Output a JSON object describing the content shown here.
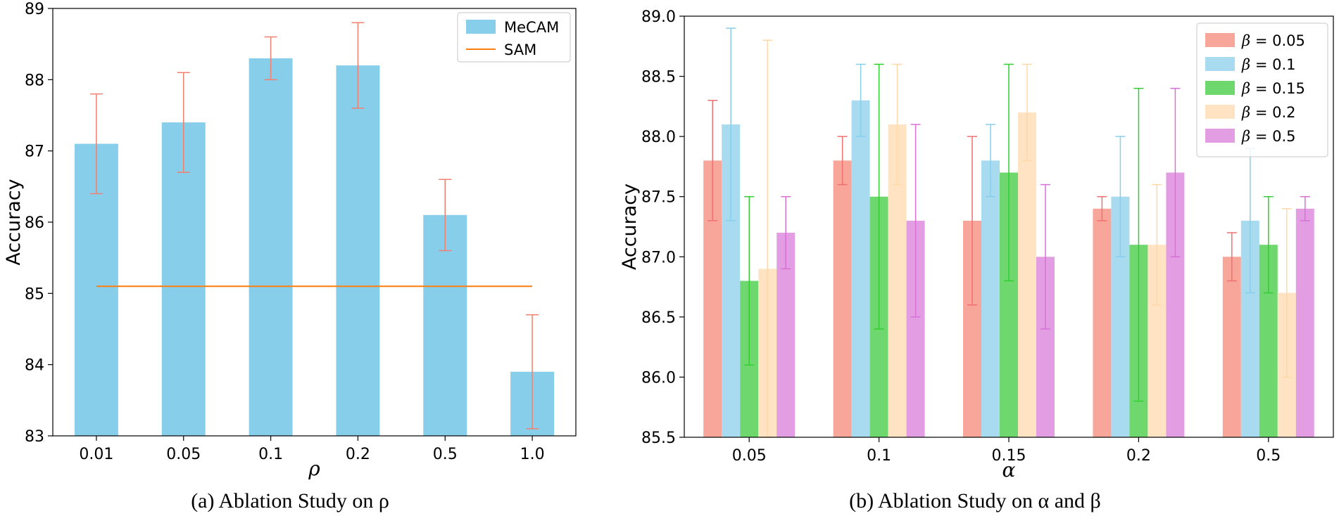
{
  "chart_data": [
    {
      "type": "bar",
      "title": "",
      "caption": "(a) Ablation Study on ρ",
      "xlabel": "ρ",
      "ylabel": "Accuracy",
      "categories": [
        "0.01",
        "0.05",
        "0.1",
        "0.2",
        "0.5",
        "1.0"
      ],
      "ylim": [
        83,
        89
      ],
      "yticks": [
        "83",
        "84",
        "85",
        "86",
        "87",
        "88",
        "89"
      ],
      "series": [
        {
          "name": "MeCAM",
          "color": "#87ceeb",
          "values": [
            87.1,
            87.4,
            88.3,
            88.2,
            86.1,
            83.9
          ],
          "errors": [
            0.7,
            0.7,
            0.3,
            0.6,
            0.5,
            0.8
          ],
          "error_color": "#f08070"
        }
      ],
      "reference_line": {
        "name": "SAM",
        "value": 85.1,
        "color": "#ff7f0e"
      },
      "legend": [
        "MeCAM",
        "SAM"
      ],
      "legend_position": "top-right"
    },
    {
      "type": "bar",
      "title": "",
      "caption": "(b) Ablation Study on α and β",
      "xlabel": "α",
      "ylabel": "Accuracy",
      "categories": [
        "0.05",
        "0.1",
        "0.15",
        "0.2",
        "0.5"
      ],
      "ylim": [
        85.5,
        89.0
      ],
      "yticks": [
        "85.5",
        "86.0",
        "86.5",
        "87.0",
        "87.5",
        "88.0",
        "88.5",
        "89.0"
      ],
      "series": [
        {
          "name": "β = 0.05",
          "sym": "β",
          "val": "0.05",
          "color": "#f8a59a",
          "error_color": "#f07070",
          "values": [
            87.8,
            87.8,
            87.3,
            87.4,
            87.0
          ],
          "errors": [
            0.5,
            0.2,
            0.7,
            0.1,
            0.2
          ]
        },
        {
          "name": "β = 0.1",
          "sym": "β",
          "val": "0.1",
          "color": "#a8dbef",
          "error_color": "#87ceeb",
          "values": [
            88.1,
            88.3,
            87.8,
            87.5,
            87.3
          ],
          "errors": [
            0.8,
            0.3,
            0.3,
            0.5,
            0.6
          ]
        },
        {
          "name": "β = 0.15",
          "sym": "β",
          "val": "0.15",
          "color": "#6ed86e",
          "error_color": "#32cd32",
          "values": [
            86.8,
            87.5,
            87.7,
            87.1,
            87.1
          ],
          "errors": [
            0.7,
            1.1,
            0.9,
            1.3,
            0.4
          ]
        },
        {
          "name": "β = 0.2",
          "sym": "β",
          "val": "0.2",
          "color": "#ffe3c2",
          "error_color": "#ffd8a8",
          "values": [
            86.9,
            88.1,
            88.2,
            87.1,
            86.7
          ],
          "errors": [
            1.9,
            0.5,
            0.4,
            0.5,
            0.7
          ]
        },
        {
          "name": "β = 0.5",
          "sym": "β",
          "val": "0.5",
          "color": "#e39ee3",
          "error_color": "#da70d6",
          "values": [
            87.2,
            87.3,
            87.0,
            87.7,
            87.4
          ],
          "errors": [
            0.3,
            0.8,
            0.6,
            0.7,
            0.1
          ]
        }
      ],
      "legend_position": "top-right"
    }
  ]
}
